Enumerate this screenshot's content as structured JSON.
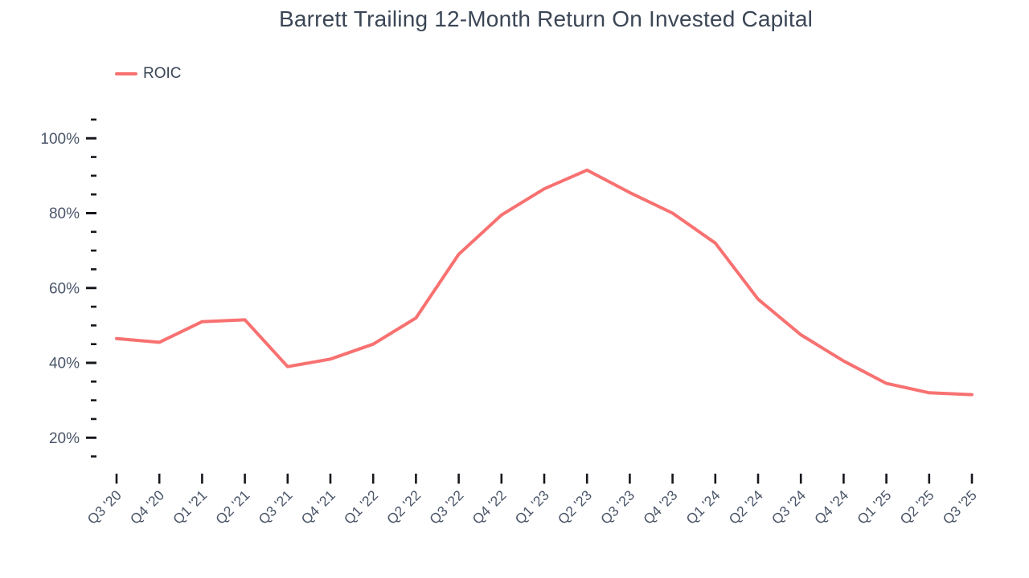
{
  "title": "Barrett Trailing 12-Month Return On Invested Capital",
  "legend": {
    "label": "ROIC"
  },
  "colors": {
    "line": "#f87171",
    "title_text": "#3b4656",
    "axis_text": "#4a5568",
    "tick": "#16181d",
    "background": "#ffffff"
  },
  "chart_data": {
    "type": "line",
    "title": "Barrett Trailing 12-Month Return On Invested Capital",
    "categories": [
      "Q3 '20",
      "Q4 '20",
      "Q1 '21",
      "Q2 '21",
      "Q3 '21",
      "Q4 '21",
      "Q1 '22",
      "Q2 '22",
      "Q3 '22",
      "Q4 '22",
      "Q1 '23",
      "Q2 '23",
      "Q3 '23",
      "Q4 '23",
      "Q1 '24",
      "Q2 '24",
      "Q3 '24",
      "Q4 '24",
      "Q1 '25",
      "Q2 '25",
      "Q3 '25"
    ],
    "series": [
      {
        "name": "ROIC",
        "values": [
          46.5,
          45.5,
          51,
          51.5,
          39,
          41,
          45,
          52,
          69,
          79.5,
          86.5,
          91.5,
          85.5,
          80,
          72,
          57,
          47.5,
          40.5,
          34.5,
          32,
          31.5
        ]
      }
    ],
    "xlabel": "",
    "ylabel": "",
    "y_axis": {
      "unit": "%",
      "range": [
        15,
        105
      ],
      "major_step": 20,
      "minor_step": 5,
      "major_tick_labels": [
        "20%",
        "40%",
        "60%",
        "80%",
        "100%"
      ]
    },
    "grid": false,
    "legend_position": "top-left"
  }
}
